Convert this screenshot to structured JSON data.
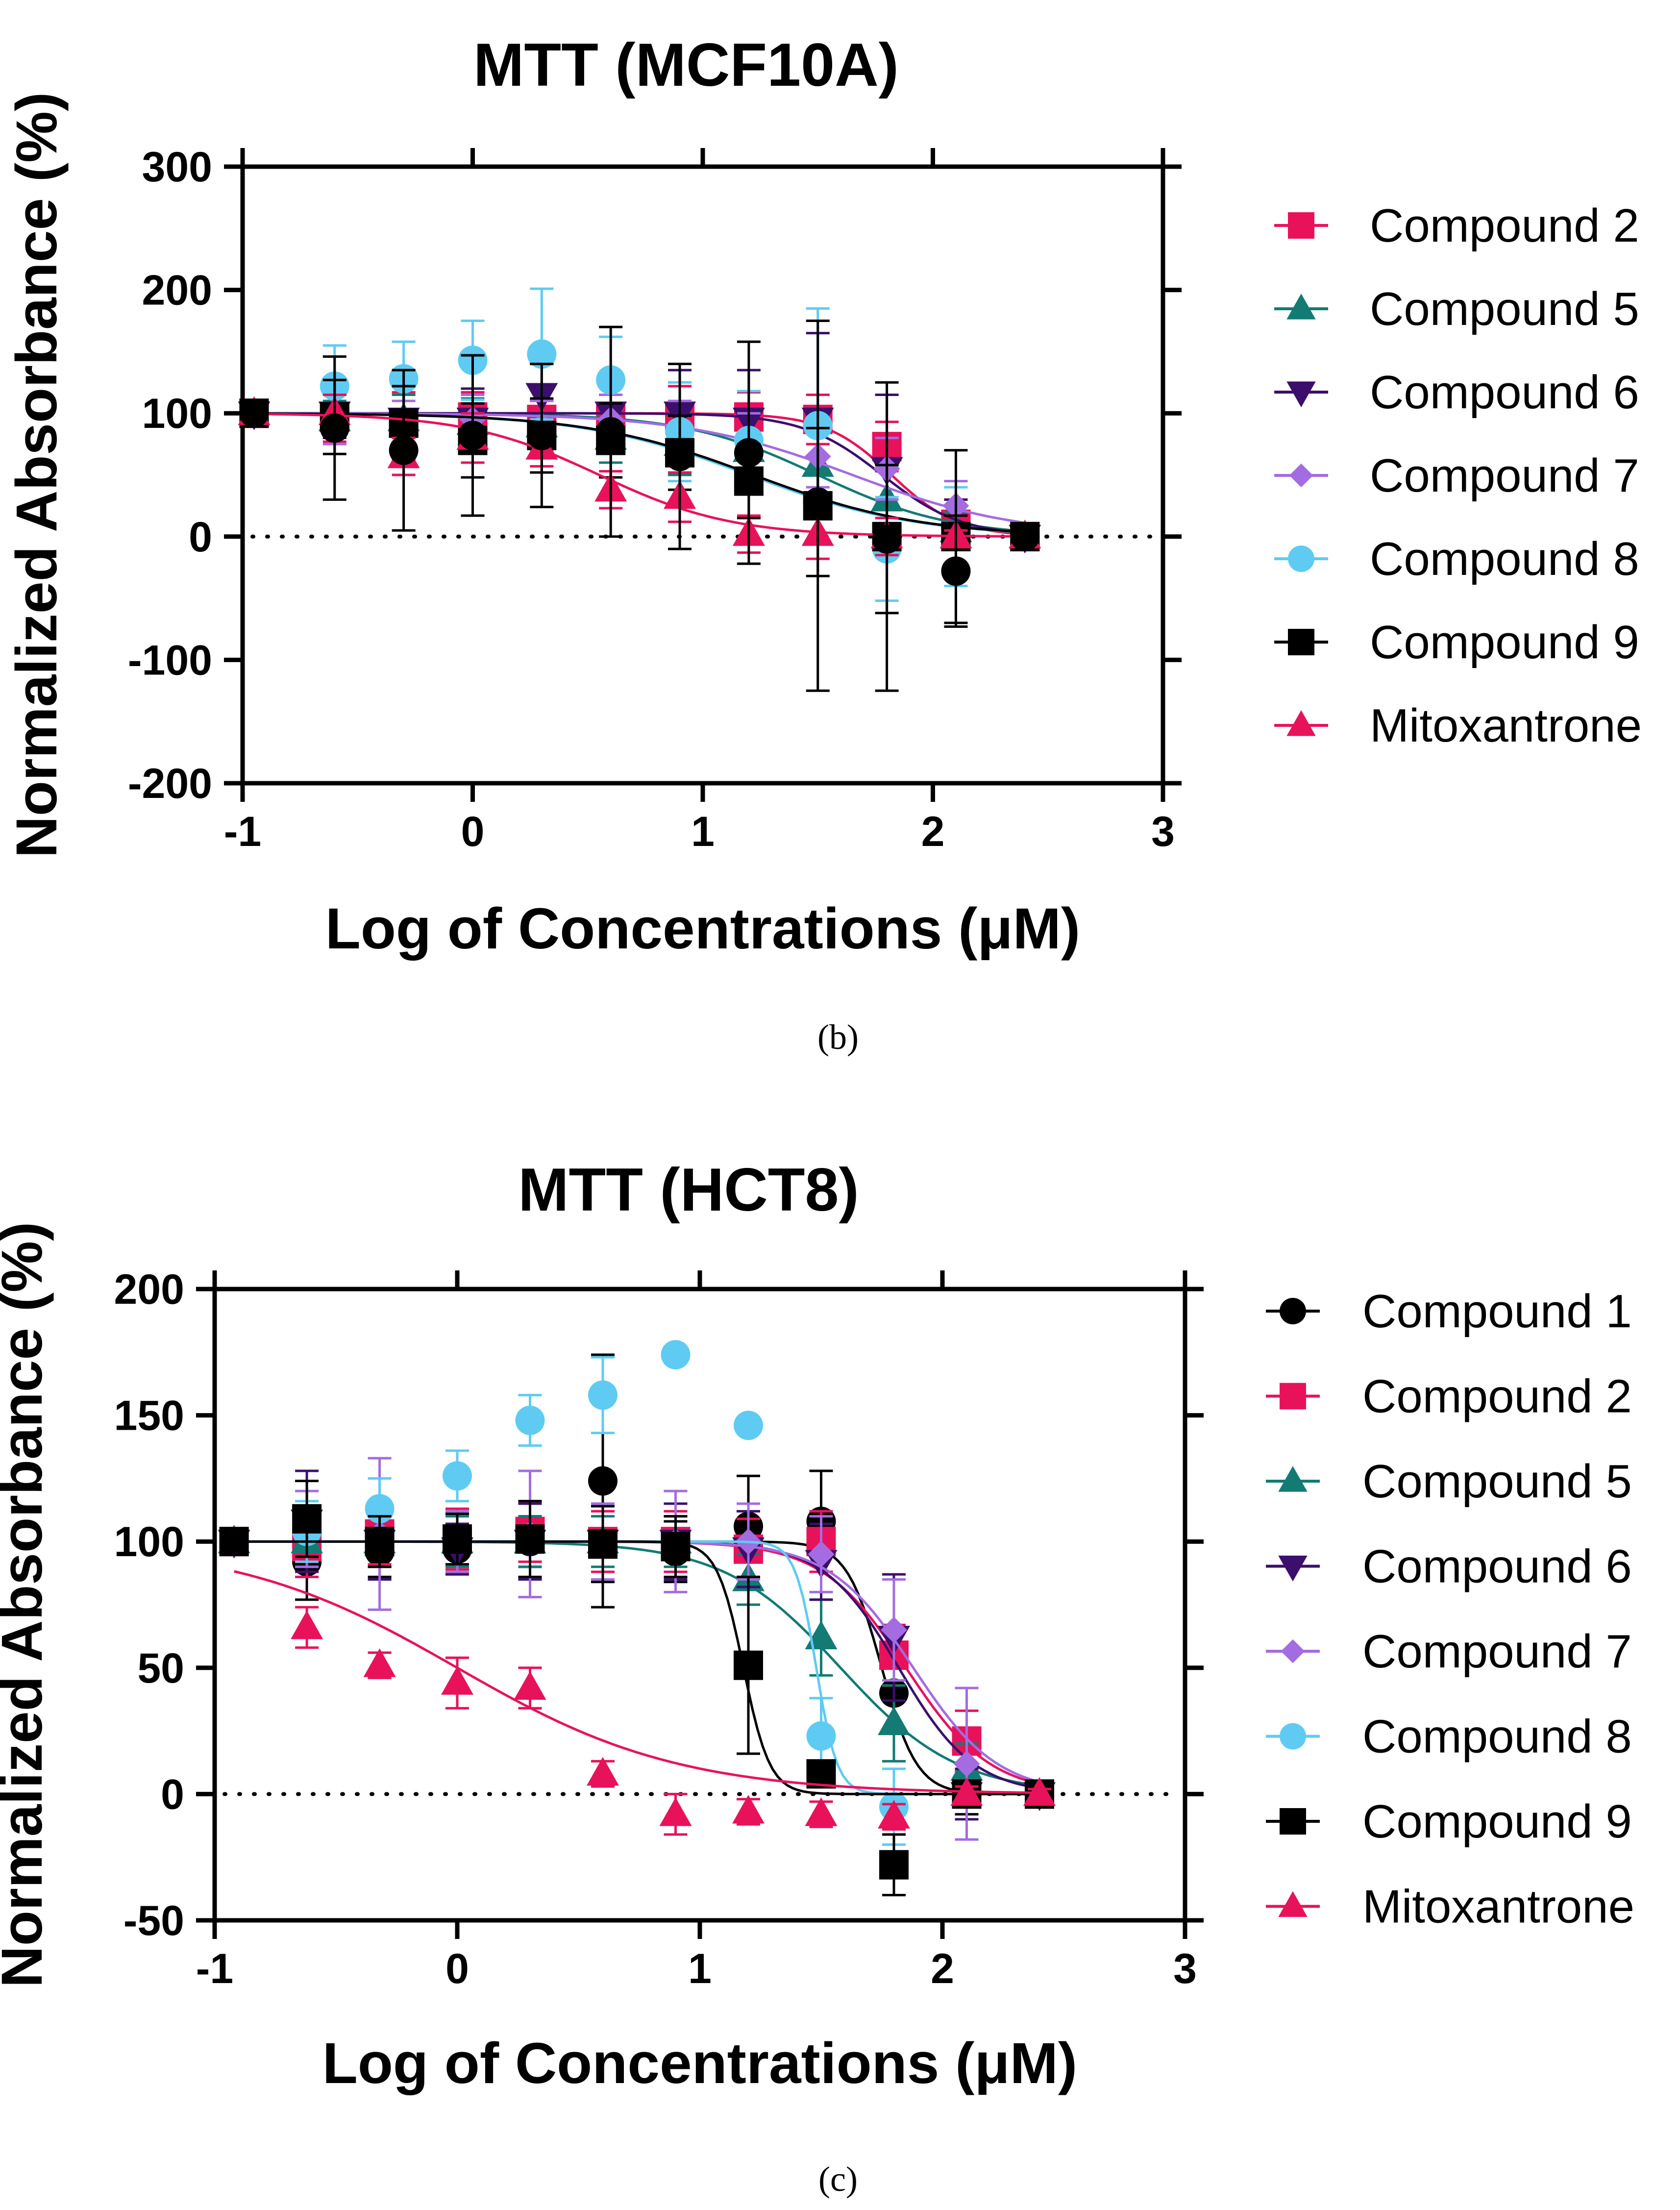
{
  "chart_data": [
    {
      "type": "scatter",
      "panel": "(b)",
      "title": "MTT (MCF10A)",
      "xlabel": "Log of Concentrations (μM)",
      "ylabel": "Normalized Absorbance (%)",
      "xlim": [
        -1,
        3
      ],
      "ylim": [
        -200,
        300
      ],
      "xticks": [
        -1,
        0,
        1,
        2,
        3
      ],
      "yticks": [
        -200,
        -100,
        0,
        100,
        200,
        300
      ],
      "x_tick_labels": [
        "-1",
        "0",
        "1",
        "2",
        "3"
      ],
      "y_tick_labels": [
        "-200",
        "-100",
        "0",
        "100",
        "200",
        "300"
      ],
      "x": [
        -0.95,
        -0.6,
        -0.3,
        0,
        0.3,
        0.6,
        0.9,
        1.2,
        1.5,
        1.8,
        2.1,
        2.4
      ],
      "reference_line": 0,
      "legend_position": "right",
      "series": [
        {
          "name": "Compound 2",
          "color": "#e8125b",
          "marker": "square",
          "values": [
            100,
            97,
            92,
            97,
            95,
            95,
            97,
            97,
            95,
            73,
            10,
            0
          ],
          "errors": [
            5,
            20,
            25,
            20,
            15,
            20,
            25,
            20,
            20,
            20,
            20,
            3
          ],
          "curve": {
            "top": 100,
            "bottom": 0,
            "logEC50": 1.82,
            "hill": 3.0
          }
        },
        {
          "name": "Compound 5",
          "color": "#137a74",
          "marker": "triangle",
          "values": [
            100,
            95,
            95,
            92,
            90,
            80,
            75,
            70,
            58,
            30,
            5,
            0
          ],
          "errors": [
            5,
            15,
            20,
            20,
            20,
            20,
            25,
            30,
            30,
            25,
            15,
            3
          ],
          "curve": {
            "top": 100,
            "bottom": 0,
            "logEC50": 1.5,
            "hill": 1.5
          }
        },
        {
          "name": "Compound 6",
          "color": "#3b0f6b",
          "marker": "triangle-down",
          "values": [
            100,
            100,
            95,
            95,
            115,
            100,
            100,
            95,
            95,
            55,
            0,
            0
          ],
          "errors": [
            5,
            20,
            30,
            25,
            25,
            30,
            35,
            40,
            70,
            60,
            30,
            3
          ],
          "curve": {
            "top": 100,
            "bottom": 0,
            "logEC50": 1.78,
            "hill": 2.5
          }
        },
        {
          "name": "Compound 7",
          "color": "#a36ce0",
          "marker": "diamond",
          "values": [
            100,
            95,
            90,
            95,
            90,
            95,
            85,
            75,
            65,
            55,
            25,
            0
          ],
          "errors": [
            5,
            20,
            20,
            20,
            20,
            20,
            25,
            25,
            25,
            25,
            20,
            5
          ],
          "curve": {
            "top": 100,
            "bottom": 0,
            "logEC50": 1.65,
            "hill": 1.2
          }
        },
        {
          "name": "Compound 8",
          "color": "#5fcbf2",
          "marker": "circle",
          "values": [
            100,
            122,
            128,
            143,
            148,
            127,
            85,
            78,
            90,
            -10,
            0,
            0
          ],
          "errors": [
            5,
            33,
            30,
            32,
            53,
            35,
            40,
            40,
            95,
            42,
            40,
            3
          ],
          "curve": {
            "top": 100,
            "bottom": 0,
            "logEC50": 1.2,
            "hill": 1.2
          }
        },
        {
          "name": "Compound 9",
          "color": "#000000",
          "marker": "square",
          "values": [
            100,
            97,
            92,
            78,
            82,
            78,
            68,
            45,
            25,
            0,
            0,
            0
          ],
          "errors": [
            5,
            30,
            30,
            30,
            30,
            30,
            30,
            30,
            150,
            125,
            70,
            3
          ],
          "curve": {
            "top": 100,
            "bottom": 0,
            "logEC50": 1.22,
            "hill": 1.2
          }
        },
        {
          "name": "Mitoxantrone",
          "color": "#e8125b",
          "marker": "triangle",
          "values": [
            100,
            100,
            65,
            80,
            72,
            38,
            32,
            2,
            2,
            0,
            0,
            0
          ],
          "errors": [
            5,
            15,
            15,
            20,
            15,
            15,
            20,
            15,
            20,
            15,
            5,
            3
          ],
          "curve": {
            "top": 100,
            "bottom": 0,
            "logEC50": 0.55,
            "hill": 1.5
          }
        },
        {
          "name": "Compound 1",
          "color": "#000000",
          "marker": "circle",
          "in_legend": false,
          "values": [
            100,
            88,
            70,
            82,
            82,
            85,
            65,
            68,
            28,
            -2,
            -28,
            0
          ],
          "errors": [
            5,
            58,
            65,
            65,
            58,
            85,
            75,
            90,
            60,
            60,
            45,
            3
          ],
          "curve": null
        }
      ]
    },
    {
      "type": "scatter",
      "panel": "(c)",
      "title": "MTT (HCT8)",
      "xlabel": "Log of Concentrations (μM)",
      "ylabel": "Normalized Absorbance (%)",
      "xlim": [
        -1,
        3
      ],
      "ylim": [
        -50,
        200
      ],
      "xticks": [
        -1,
        0,
        1,
        2,
        3
      ],
      "yticks": [
        -50,
        0,
        50,
        100,
        150,
        200
      ],
      "x_tick_labels": [
        "-1",
        "0",
        "1",
        "2",
        "3"
      ],
      "y_tick_labels": [
        "-50",
        "0",
        "50",
        "100",
        "150",
        "200"
      ],
      "x": [
        -0.92,
        -0.62,
        -0.32,
        0,
        0.3,
        0.6,
        0.9,
        1.2,
        1.5,
        1.8,
        2.1,
        2.4
      ],
      "reference_line": 0,
      "legend_position": "right",
      "series": [
        {
          "name": "Compound 1",
          "color": "#000000",
          "marker": "circle",
          "values": [
            100,
            92,
            96,
            97,
            100,
            124,
            96,
            106,
            108,
            40,
            0,
            0
          ],
          "errors": [
            3,
            15,
            10,
            10,
            10,
            50,
            12,
            20,
            20,
            15,
            8,
            2
          ],
          "curve": {
            "top": 100,
            "bottom": 0,
            "logEC50": 1.75,
            "hill": 6.0
          }
        },
        {
          "name": "Compound 2",
          "color": "#e8125b",
          "marker": "square",
          "values": [
            100,
            98,
            103,
            101,
            104,
            100,
            100,
            97,
            100,
            55,
            21,
            0
          ],
          "errors": [
            3,
            12,
            12,
            12,
            12,
            12,
            12,
            12,
            12,
            12,
            12,
            2
          ],
          "curve": {
            "top": 100,
            "bottom": 0,
            "logEC50": 1.85,
            "hill": 2.5
          }
        },
        {
          "name": "Compound 5",
          "color": "#137a74",
          "marker": "triangle",
          "values": [
            100,
            100,
            100,
            100,
            100,
            100,
            100,
            85,
            62,
            28,
            10,
            0
          ],
          "errors": [
            3,
            10,
            10,
            10,
            10,
            10,
            10,
            10,
            15,
            15,
            10,
            2
          ],
          "curve": {
            "top": 100,
            "bottom": 0,
            "logEC50": 1.58,
            "hill": 1.8
          }
        },
        {
          "name": "Compound 6",
          "color": "#3b0f6b",
          "marker": "triangle-down",
          "values": [
            100,
            108,
            100,
            97,
            100,
            100,
            100,
            97,
            92,
            62,
            0,
            0
          ],
          "errors": [
            3,
            20,
            15,
            10,
            15,
            15,
            15,
            15,
            15,
            25,
            10,
            2
          ],
          "curve": {
            "top": 100,
            "bottom": 0,
            "logEC50": 1.82,
            "hill": 2.8
          }
        },
        {
          "name": "Compound 7",
          "color": "#a36ce0",
          "marker": "diamond",
          "values": [
            100,
            105,
            103,
            100,
            103,
            100,
            100,
            100,
            95,
            65,
            12,
            0
          ],
          "errors": [
            3,
            15,
            30,
            12,
            25,
            15,
            20,
            15,
            15,
            20,
            30,
            2
          ],
          "curve": {
            "top": 100,
            "bottom": 0,
            "logEC50": 1.88,
            "hill": 2.5
          }
        },
        {
          "name": "Compound 8",
          "color": "#5fcbf2",
          "marker": "circle",
          "values": [
            100,
            104,
            113,
            126,
            148,
            158,
            174,
            146,
            23,
            -5,
            0,
            0
          ],
          "errors": [
            3,
            12,
            12,
            10,
            10,
            15,
            0,
            0,
            15,
            15,
            5,
            2
          ],
          "curve": {
            "top": 100,
            "bottom": 0,
            "logEC50": 1.48,
            "hill": 10.0
          }
        },
        {
          "name": "Compound 9",
          "color": "#000000",
          "marker": "square",
          "values": [
            100,
            109,
            100,
            101,
            101,
            99,
            98,
            51,
            8,
            -28,
            0,
            0
          ],
          "errors": [
            3,
            15,
            10,
            10,
            15,
            15,
            12,
            35,
            5,
            12,
            5,
            2
          ],
          "curve": {
            "top": 100,
            "bottom": 0,
            "logEC50": 1.18,
            "hill": 8.0
          }
        },
        {
          "name": "Mitoxantrone",
          "color": "#e8125b",
          "marker": "triangle",
          "values": [
            null,
            66,
            51,
            44,
            42,
            8,
            -8,
            -7,
            -8,
            -9,
            0,
            0
          ],
          "errors": [
            0,
            8,
            5,
            10,
            8,
            5,
            8,
            5,
            5,
            5,
            3,
            2
          ],
          "curve": {
            "top": 100,
            "bottom": 0,
            "logEC50": 0.0,
            "hill": 0.95
          }
        }
      ]
    }
  ],
  "captions": [
    "(b)",
    "(c)"
  ]
}
